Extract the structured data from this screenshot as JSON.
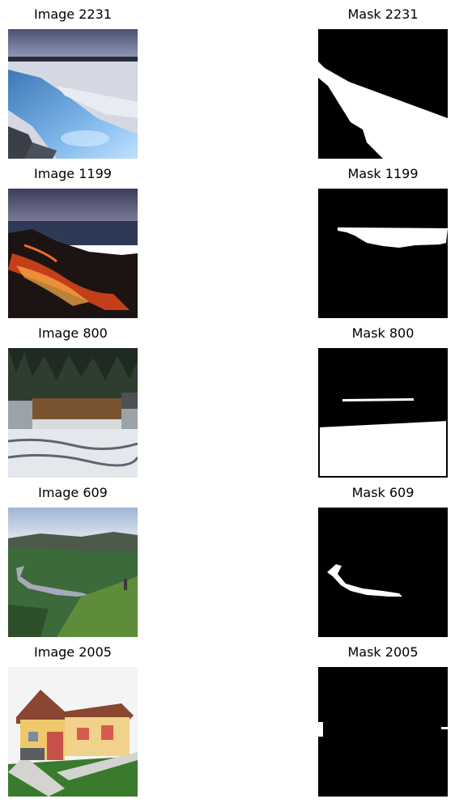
{
  "figure": {
    "rows": [
      {
        "image_title": "Image 2231",
        "mask_title": "Mask 2231",
        "image_subject": "icy-blue-river-scene",
        "mask_subject": "river-segmentation-mask"
      },
      {
        "image_title": "Image 1199",
        "mask_title": "Mask 1199",
        "image_subject": "lava-flow-at-ocean-scene",
        "mask_subject": "sea-segmentation-mask"
      },
      {
        "image_title": "Image 800",
        "mask_title": "Mask 800",
        "image_subject": "waterfall-scene",
        "mask_subject": "water-segmentation-mask"
      },
      {
        "image_title": "Image 609",
        "mask_title": "Mask 609",
        "image_subject": "river-valley-scene",
        "mask_subject": "river-segmentation-mask"
      },
      {
        "image_title": "Image 2005",
        "mask_title": "Mask 2005",
        "image_subject": "house-scene",
        "mask_subject": "sparse-segmentation-mask"
      }
    ]
  }
}
